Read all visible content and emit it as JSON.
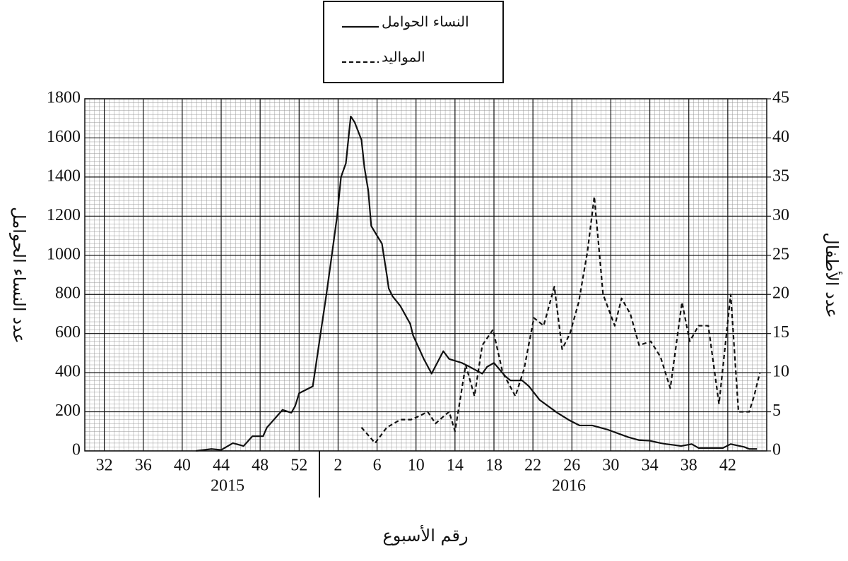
{
  "chart_data": {
    "type": "line",
    "legend_title": null,
    "xlabel": "رقم الأسبوع",
    "ylabel": "عدد النساء الحوامل",
    "y2label": "عدد الأطفال",
    "year_labels": [
      "2015",
      "2016"
    ],
    "xlim": [
      -2,
      68
    ],
    "xticks": [
      {
        "value": 0,
        "label": "32"
      },
      {
        "value": 4,
        "label": "36"
      },
      {
        "value": 8,
        "label": "40"
      },
      {
        "value": 12,
        "label": "44"
      },
      {
        "value": 16,
        "label": "48"
      },
      {
        "value": 20,
        "label": "52"
      },
      {
        "value": 24,
        "label": "2"
      },
      {
        "value": 28,
        "label": "6"
      },
      {
        "value": 32,
        "label": "10"
      },
      {
        "value": 36,
        "label": "14"
      },
      {
        "value": 40,
        "label": "18"
      },
      {
        "value": 44,
        "label": "22"
      },
      {
        "value": 48,
        "label": "26"
      },
      {
        "value": 52,
        "label": "30"
      },
      {
        "value": 56,
        "label": "34"
      },
      {
        "value": 60,
        "label": "38"
      },
      {
        "value": 64,
        "label": "42"
      }
    ],
    "ylim": [
      0,
      1800
    ],
    "yticks": [
      0,
      200,
      400,
      600,
      800,
      1000,
      1200,
      1400,
      1600,
      1800
    ],
    "y2lim": [
      0,
      45
    ],
    "y2ticks": [
      0,
      5,
      10,
      15,
      20,
      25,
      30,
      35,
      40,
      45
    ],
    "grid": true,
    "minor_grid": true,
    "series": [
      {
        "name": "النساء الحوامل",
        "color": "#111111",
        "style": "solid",
        "x": [
          9.4,
          11,
          12,
          13.2,
          14.3,
          15.2,
          16.3,
          16.7,
          18.3,
          19.2,
          19.6,
          20,
          21.4,
          21.7,
          22.2,
          22.8,
          23.3,
          23.9,
          24.3,
          24.8,
          25.3,
          25.7,
          26.4,
          26.7,
          27.1,
          27.4,
          28,
          28.5,
          29,
          29.2,
          29.6,
          30.4,
          31.4,
          31.7,
          32.8,
          33.6,
          34.8,
          35.4,
          36.7,
          37.5,
          38.8,
          39.3,
          40,
          41.2,
          41.7,
          42.9,
          43.6,
          44.7,
          46.5,
          47.8,
          48.8,
          50.1,
          51.6,
          53.8,
          54.9,
          56,
          57.1,
          57.7,
          58.5,
          59.2,
          60.3,
          61,
          63.5,
          64.3,
          65.7,
          66.2,
          67
        ],
        "values": [
          0,
          10,
          5,
          40,
          25,
          75,
          75,
          120,
          210,
          195,
          230,
          295,
          330,
          430,
          600,
          800,
          980,
          1200,
          1400,
          1470,
          1710,
          1680,
          1590,
          1450,
          1330,
          1150,
          1100,
          1060,
          900,
          830,
          790,
          740,
          650,
          590,
          470,
          395,
          510,
          470,
          450,
          430,
          395,
          430,
          450,
          380,
          360,
          360,
          330,
          260,
          195,
          155,
          130,
          130,
          110,
          70,
          55,
          52,
          40,
          35,
          30,
          25,
          35,
          15,
          15,
          35,
          20,
          10,
          10
        ]
      },
      {
        "name": "المواليد",
        "color": "#111111",
        "style": "dashed",
        "axis": "y2",
        "x": [
          26.4,
          27.8,
          29,
          29.7,
          30.4,
          31.5,
          32.4,
          33.2,
          34,
          34.9,
          35.4,
          36,
          37.1,
          38,
          38.8,
          39.9,
          40.9,
          42.2,
          43.1,
          44.1,
          45.1,
          46.2,
          47,
          47.8,
          48.7,
          49.6,
          50.3,
          51.2,
          52.4,
          53.1,
          54,
          54.9,
          56.1,
          57.1,
          58.1,
          59.3,
          60.1,
          61,
          62,
          63.1,
          64.3,
          65.1,
          66.2,
          66.7,
          67.3
        ],
        "values": [
          3,
          1,
          3,
          3.5,
          4,
          4,
          4.5,
          5,
          3.5,
          4.5,
          5,
          2.5,
          11,
          7,
          13.5,
          15.5,
          10,
          7,
          10.5,
          17,
          16,
          21,
          13,
          15,
          19,
          25.5,
          32.5,
          20,
          16,
          19.5,
          17.5,
          13.5,
          14,
          12,
          8,
          19,
          14,
          16,
          16,
          6,
          20,
          5,
          5,
          7,
          10
        ]
      }
    ]
  }
}
